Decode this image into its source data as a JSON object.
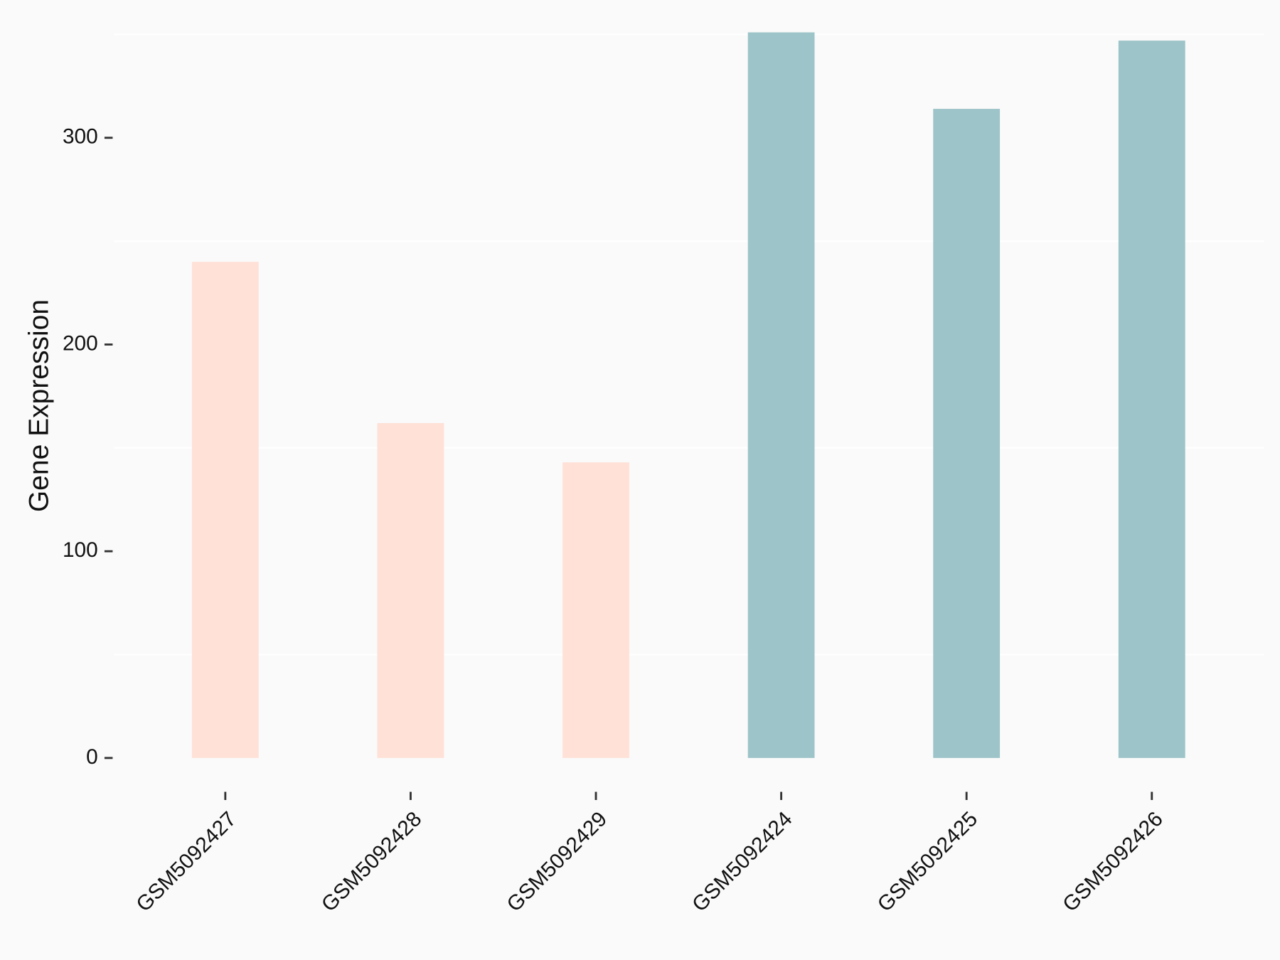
{
  "chart_data": {
    "type": "bar",
    "y_label": "Gene Expression",
    "categories": [
      "GSM5092427",
      "GSM5092428",
      "GSM5092429",
      "GSM5092424",
      "GSM5092425",
      "GSM5092426"
    ],
    "values": [
      240,
      162,
      143,
      351,
      314,
      347
    ],
    "colors": [
      "#ffe1d7",
      "#ffe1d7",
      "#ffe1d7",
      "#9dc4c8",
      "#9dc4c8",
      "#9dc4c8"
    ],
    "ylim": [
      -15,
      355
    ],
    "yticks": [
      0,
      100,
      200,
      300
    ],
    "minor_yticks": [
      50,
      150,
      250,
      350
    ],
    "grid": true
  }
}
